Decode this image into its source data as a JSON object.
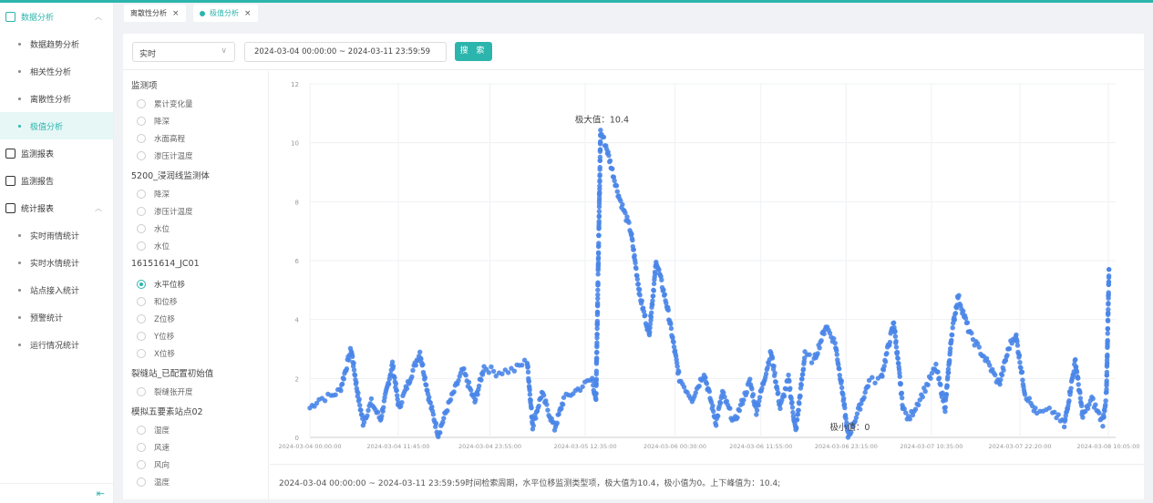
{
  "sidebar": {
    "groups": [
      {
        "label": "数据分析",
        "icon": "chart-analysis-icon",
        "expanded": true,
        "active": true,
        "items": [
          {
            "label": "数据趋势分析"
          },
          {
            "label": "相关性分析"
          },
          {
            "label": "离散性分析"
          },
          {
            "label": "极值分析",
            "active": true
          }
        ]
      },
      {
        "label": "监测报表",
        "icon": "report-table-icon"
      },
      {
        "label": "监测报告",
        "icon": "report-doc-icon"
      },
      {
        "label": "统计报表",
        "icon": "statistics-icon",
        "expanded": true,
        "items": [
          {
            "label": "实时雨情统计"
          },
          {
            "label": "实时水情统计"
          },
          {
            "label": "站点接入统计"
          },
          {
            "label": "预警统计"
          },
          {
            "label": "运行情况统计"
          }
        ]
      }
    ],
    "collapse_icon": "collapse-menu-icon"
  },
  "tabs": [
    {
      "label": "离散性分析",
      "close": "×"
    },
    {
      "label": "极值分析",
      "close": "×",
      "active": true
    }
  ],
  "filter": {
    "mode": "实时",
    "range": "2024-03-04 00:00:00  ~  2024-03-11 23:59:59",
    "search_label": "搜 索"
  },
  "monitor_groups": [
    {
      "title": "监测项",
      "options": [
        "累计变化量",
        "降深",
        "水面高程",
        "渗压计温度"
      ]
    },
    {
      "title": "5200_浸润线监测体",
      "options": [
        "降深",
        "渗压计温度",
        "水位",
        "水位"
      ]
    },
    {
      "title": "16151614_JC01",
      "options": [
        "水平位移",
        "和位移",
        "Z位移",
        "Y位移",
        "X位移"
      ],
      "selected": "水平位移"
    },
    {
      "title": "裂缝站_已配置初始值",
      "options": [
        "裂缝张开度"
      ]
    },
    {
      "title": "模拟五要素站点02",
      "options": [
        "湿度",
        "风速",
        "风向",
        "温度"
      ]
    }
  ],
  "accent_color": "#2bb5ad",
  "chart_data": {
    "type": "scatter",
    "color": "#4a86e8",
    "ylim": [
      0,
      12
    ],
    "yticks": [
      "0",
      "2",
      "4",
      "6",
      "8",
      "10",
      "12"
    ],
    "xlim": [
      "2024-03-04 00:00:00",
      "2024-03-08 10:20:00"
    ],
    "xticks": [
      "2024-03-04 00:00:00",
      "2024-03-04 11:45:00",
      "2024-03-04 23:55:00",
      "2024-03-05 12:35:00",
      "2024-03-06 00:30:00",
      "2024-03-06 11:55:00",
      "2024-03-06 23:15:00",
      "2024-03-07 10:35:00",
      "2024-03-07 22:20:00",
      "2024-03-08 10:05:00"
    ],
    "grid": true,
    "max_label": "极大值：10.4",
    "min_label": "极小值：0",
    "max_point": [
      "2024-03-05 14:37:00",
      10.4
    ],
    "min_point": [
      "2024-03-06 23:30:00",
      0
    ],
    "points": [
      [
        "2024-03-04 00:00",
        1.0
      ],
      [
        "2024-03-04 01:13",
        1.3
      ],
      [
        "2024-03-04 02:48",
        1.4
      ],
      [
        "2024-03-04 04:01",
        1.6
      ],
      [
        "2024-03-04 05:29",
        3.0
      ],
      [
        "2024-03-04 06:20",
        1.5
      ],
      [
        "2024-03-04 07:04",
        0.5
      ],
      [
        "2024-03-04 08:10",
        1.2
      ],
      [
        "2024-03-04 09:23",
        0.6
      ],
      [
        "2024-03-04 10:58",
        2.5
      ],
      [
        "2024-03-04 11:49",
        1.0
      ],
      [
        "2024-03-04 14:37",
        2.9
      ],
      [
        "2024-03-04 15:50",
        1.3
      ],
      [
        "2024-03-04 17:03",
        0.1
      ],
      [
        "2024-03-04 18:16",
        1.0
      ],
      [
        "2024-03-04 20:20",
        2.3
      ],
      [
        "2024-03-04 21:55",
        1.2
      ],
      [
        "2024-03-04 23:08",
        2.4
      ],
      [
        "2024-03-05 00:44",
        2.2
      ],
      [
        "2024-03-05 03:10",
        2.3
      ],
      [
        "2024-03-05 04:52",
        2.6
      ],
      [
        "2024-03-05 05:36",
        0.4
      ],
      [
        "2024-03-05 06:49",
        1.5
      ],
      [
        "2024-03-05 08:31",
        0.3
      ],
      [
        "2024-03-05 09:44",
        1.3
      ],
      [
        "2024-03-05 12:32",
        1.8
      ],
      [
        "2024-03-05 13:31",
        2.0
      ],
      [
        "2024-03-05 14:00",
        1.2
      ],
      [
        "2024-03-05 14:37",
        10.4
      ],
      [
        "2024-03-05 15:20",
        9.9
      ],
      [
        "2024-03-05 17:02",
        8.2
      ],
      [
        "2024-03-05 18:38",
        7.0
      ],
      [
        "2024-03-05 19:51",
        4.8
      ],
      [
        "2024-03-05 21:04",
        3.5
      ],
      [
        "2024-03-05 22:02",
        6.0
      ],
      [
        "2024-03-05 23:30",
        4.4
      ],
      [
        "2024-03-06 01:05",
        2.0
      ],
      [
        "2024-03-06 02:47",
        1.3
      ],
      [
        "2024-03-06 04:22",
        2.2
      ],
      [
        "2024-03-06 05:58",
        0.5
      ],
      [
        "2024-03-06 06:49",
        1.5
      ],
      [
        "2024-03-06 08:23",
        0.5
      ],
      [
        "2024-03-06 10:28",
        1.9
      ],
      [
        "2024-03-06 11:19",
        0.9
      ],
      [
        "2024-03-06 13:16",
        2.9
      ],
      [
        "2024-03-06 14:29",
        1.0
      ],
      [
        "2024-03-06 15:35",
        2.0
      ],
      [
        "2024-03-06 16:33",
        0.2
      ],
      [
        "2024-03-06 17:46",
        2.8
      ],
      [
        "2024-03-06 18:59",
        2.6
      ],
      [
        "2024-03-06 20:34",
        3.8
      ],
      [
        "2024-03-06 21:47",
        3.2
      ],
      [
        "2024-03-06 22:38",
        1.8
      ],
      [
        "2024-03-06 23:30",
        0.0
      ],
      [
        "2024-03-07 00:43",
        0.8
      ],
      [
        "2024-03-07 02:18",
        1.9
      ],
      [
        "2024-03-07 03:53",
        2.0
      ],
      [
        "2024-03-07 05:35",
        3.9
      ],
      [
        "2024-03-07 06:48",
        1.0
      ],
      [
        "2024-03-07 07:32",
        0.6
      ],
      [
        "2024-03-07 09:14",
        1.4
      ],
      [
        "2024-03-07 11:11",
        2.4
      ],
      [
        "2024-03-07 12:24",
        1.0
      ],
      [
        "2024-03-07 13:16",
        3.5
      ],
      [
        "2024-03-07 14:07",
        4.8
      ],
      [
        "2024-03-07 15:42",
        3.5
      ],
      [
        "2024-03-07 18:08",
        2.5
      ],
      [
        "2024-03-07 19:35",
        1.8
      ],
      [
        "2024-03-07 20:56",
        3.1
      ],
      [
        "2024-03-07 21:47",
        3.5
      ],
      [
        "2024-03-07 23:00",
        1.5
      ],
      [
        "2024-03-08 00:35",
        0.8
      ],
      [
        "2024-03-08 02:40",
        0.9
      ],
      [
        "2024-03-08 04:14",
        0.4
      ],
      [
        "2024-03-08 05:42",
        2.6
      ],
      [
        "2024-03-08 06:41",
        0.7
      ],
      [
        "2024-03-08 07:53",
        1.3
      ],
      [
        "2024-03-08 09:21",
        0.5
      ],
      [
        "2024-03-08 09:50",
        1.5
      ],
      [
        "2024-03-08 10:10",
        5.7
      ]
    ]
  },
  "summary": "2024-03-04 00:00:00 ~ 2024-03-11 23:59:59时间检索周期，水平位移监测类型项，极大值为10.4，极小值为0。上下峰值为：10.4;"
}
